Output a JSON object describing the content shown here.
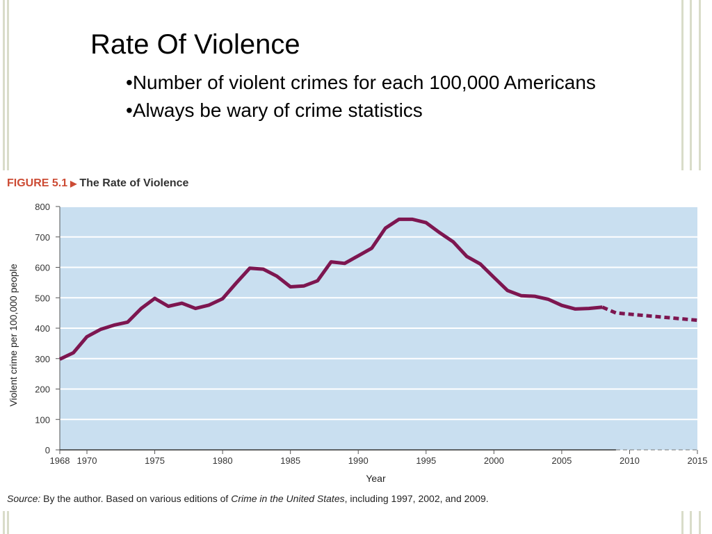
{
  "slide": {
    "title": "Rate Of Violence",
    "bullets": [
      "Number of violent crimes for each 100,000 Americans",
      "Always be wary of crime statistics"
    ]
  },
  "figure": {
    "number": "FIGURE 5.1",
    "title": "The Rate of Violence",
    "source_label": "Source:",
    "source_text_1": "By the author. Based on various editions of",
    "source_title": "Crime in the United States",
    "source_text_2": ", including 1997, 2002, and 2009."
  },
  "colors": {
    "plot_background": "#c9dff0",
    "line": "#7d1650",
    "accent": "#cc4b34"
  },
  "chart_data": {
    "type": "line",
    "title": "The Rate of Violence",
    "xlabel": "Year",
    "ylabel": "Violent crime per 100,000 people",
    "xlim": [
      1968,
      2015
    ],
    "ylim": [
      0,
      800
    ],
    "xticks": [
      1968,
      1970,
      1975,
      1980,
      1985,
      1990,
      1995,
      2000,
      2005,
      2010,
      2015
    ],
    "yticks": [
      0,
      100,
      200,
      300,
      400,
      500,
      600,
      700,
      800
    ],
    "grid": true,
    "series": [
      {
        "style": "solid",
        "x": [
          1968,
          1969,
          1970,
          1971,
          1972,
          1973,
          1974,
          1975,
          1976,
          1977,
          1978,
          1979,
          1980,
          1981,
          1982,
          1983,
          1984,
          1985,
          1986,
          1987,
          1988,
          1989,
          1990,
          1991,
          1992,
          1993,
          1994,
          1995,
          1996,
          1997,
          1998,
          1999,
          2000,
          2001,
          2002,
          2003,
          2004,
          2005,
          2006,
          2007,
          2008
        ],
        "y": [
          298,
          319,
          372,
          396,
          410,
          420,
          465,
          498,
          472,
          482,
          465,
          476,
          497,
          548,
          597,
          594,
          571,
          536,
          539,
          556,
          618,
          613,
          638,
          663,
          729,
          758,
          758,
          747,
          714,
          684,
          636,
          611,
          567,
          524,
          507,
          505,
          495,
          475,
          463,
          465,
          469
        ]
      },
      {
        "style": "dashed",
        "x": [
          2008,
          2009,
          2015
        ],
        "y": [
          469,
          450,
          426
        ]
      }
    ]
  }
}
